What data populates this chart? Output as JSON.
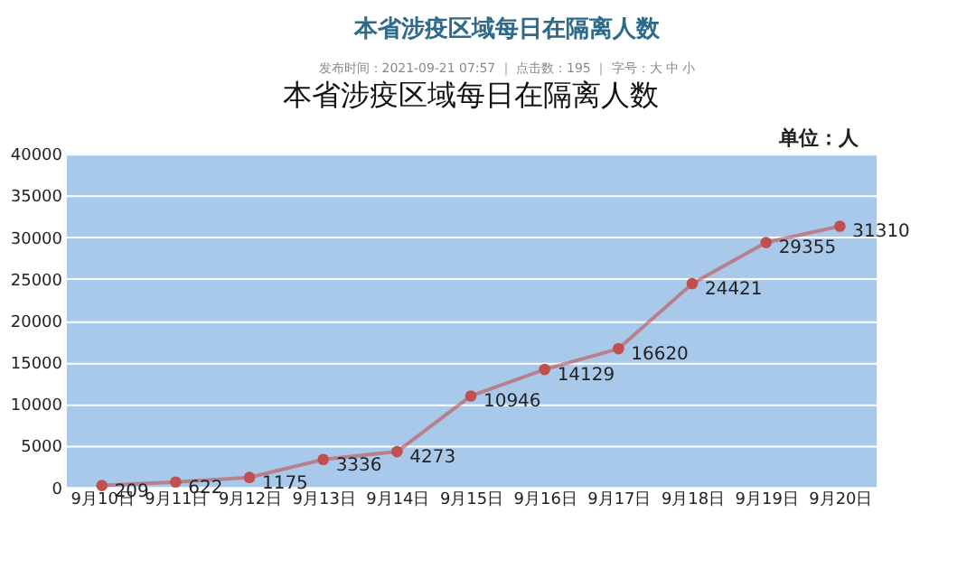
{
  "chart_data": {
    "type": "line",
    "title": "本省涉疫区域每日在隔离人数",
    "annotations": [
      "本省涉疫区域每日在隔离人数",
      "发布时间：2021-09-21 07:57 ｜ 点击数：195 ｜ 字号：大 中 小",
      "单位：人"
    ],
    "categories": [
      "9月10日",
      "9月11日",
      "9月12日",
      "9月13日",
      "9月14日",
      "9月15日",
      "9月16日",
      "9月17日",
      "9月18日",
      "9月19日",
      "9月20日"
    ],
    "series": [
      {
        "color": "#c0504d",
        "values": [
          209,
          622,
          1175,
          3336,
          4273,
          10946,
          14129,
          16620,
          24421,
          29355,
          31310
        ]
      }
    ],
    "ylim": [
      0,
      40000
    ],
    "yticks": [
      0,
      5000,
      10000,
      15000,
      20000,
      25000,
      30000,
      35000,
      40000
    ],
    "grid": "y",
    "marker": "circle",
    "line_style": "solid",
    "data_labels": true
  }
}
